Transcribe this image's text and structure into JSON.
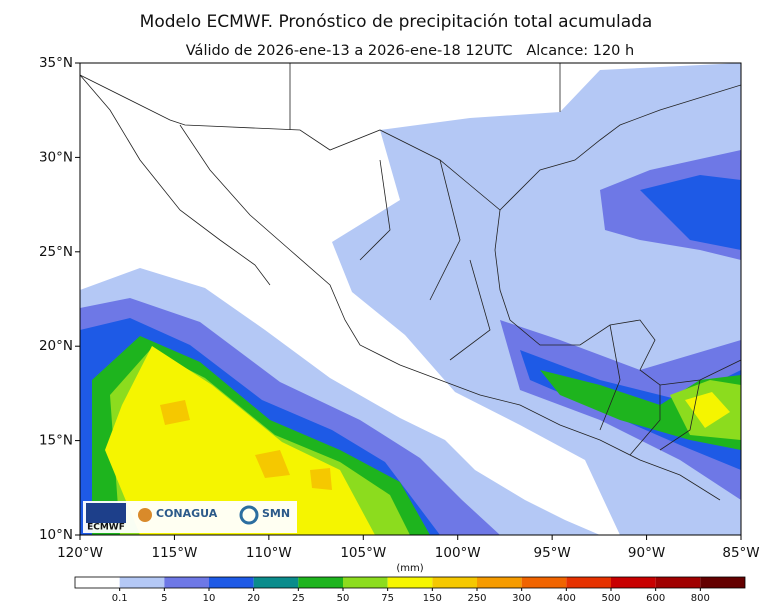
{
  "title": "Modelo ECMWF. Pronóstico de precipitación total acumulada",
  "subtitle": "Válido de 2026-ene-13 a 2026-ene-18 12UTC   Alcance: 120 h",
  "map": {
    "lat_labels": [
      "35°N",
      "30°N",
      "25°N",
      "20°N",
      "15°N",
      "10°N"
    ],
    "lon_labels": [
      "120°W",
      "115°W",
      "110°W",
      "105°W",
      "100°W",
      "95°W",
      "90°W",
      "85°W"
    ]
  },
  "colorbar": {
    "unit": "(mm)",
    "ticks": [
      0.1,
      5,
      10,
      20,
      25,
      50,
      75,
      150,
      250,
      300,
      400,
      500,
      600,
      800
    ],
    "colors": [
      "#ffffff",
      "#b4c8f5",
      "#6e78e6",
      "#1e5ae6",
      "#0a8c8c",
      "#1eb41e",
      "#8cdc1e",
      "#f5f500",
      "#f5c800",
      "#f59b00",
      "#f06400",
      "#e63200",
      "#c80000",
      "#a00000",
      "#640000"
    ]
  },
  "logos": {
    "ecmwf": "ECMWF",
    "conagua": "CONAGUA",
    "smn": "SMN"
  }
}
